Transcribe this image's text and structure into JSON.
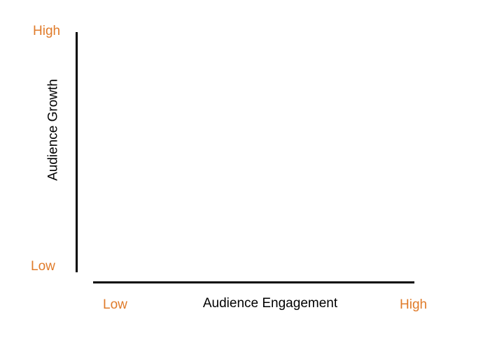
{
  "theme": {
    "accent_color": "#e07b2a",
    "axis_color": "#000000",
    "background": "#ffffff"
  },
  "y_axis": {
    "title": "Audience Growth",
    "high_label": "High",
    "low_label": "Low"
  },
  "x_axis": {
    "title": "Audience Engagement",
    "low_label": "Low",
    "high_label": "High"
  }
}
